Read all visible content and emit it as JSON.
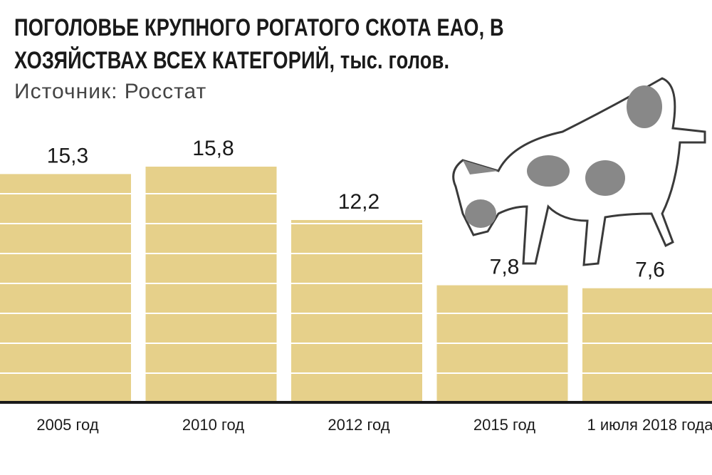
{
  "chart_data": {
    "type": "bar",
    "title": "ПОГОЛОВЬЕ КРУПНОГО РОГАТОГО СКОТА ЕАО, В ХОЗЯЙСТВАХ ВСЕХ КАТЕГОРИЙ, тыс. голов.",
    "subtitle": "Источник: Росстат",
    "categories": [
      "2005 год",
      "2010 год",
      "2012 год",
      "2015 год",
      "1 июля 2018 года"
    ],
    "values": [
      15.3,
      15.8,
      12.2,
      7.8,
      7.6
    ],
    "value_labels": [
      "15,3",
      "15,8",
      "12,2",
      "7,8",
      "7,6"
    ],
    "color": "#e6d08a"
  }
}
